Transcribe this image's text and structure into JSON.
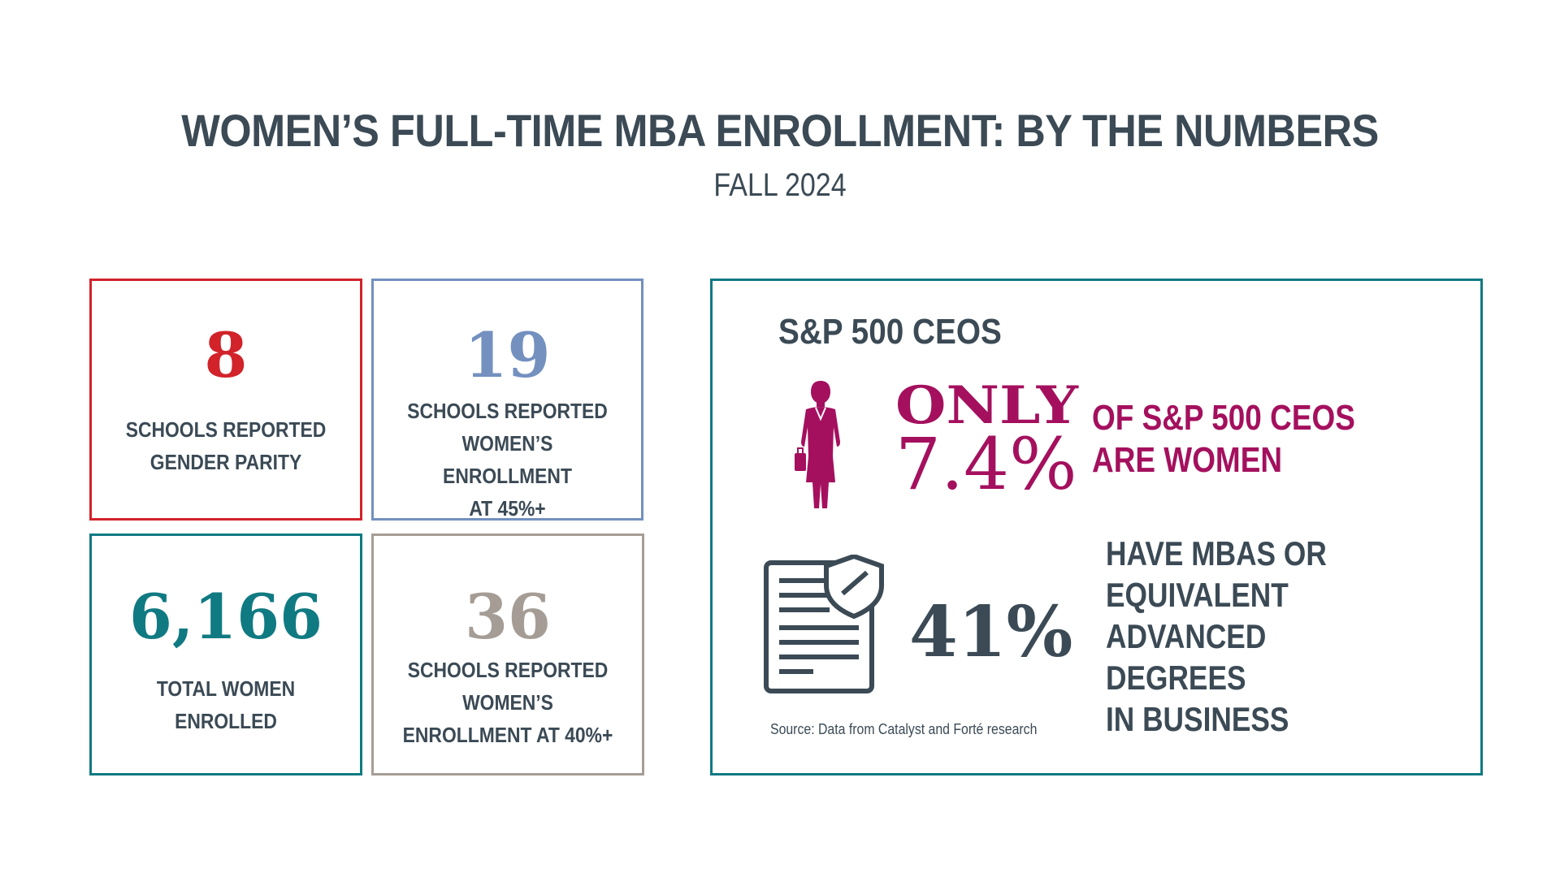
{
  "header": {
    "title": "WOMEN’S FULL-TIME MBA ENROLLMENT: BY THE NUMBERS",
    "subtitle": "FALL 2024"
  },
  "stats": [
    {
      "value": "8",
      "label_lines": [
        "SCHOOLS REPORTED",
        "GENDER PARITY"
      ],
      "color": "#d2232a"
    },
    {
      "value": "19",
      "label_lines": [
        "SCHOOLS REPORTED",
        "WOMEN’S ENROLLMENT",
        "AT 45%+"
      ],
      "color": "#7390bf"
    },
    {
      "value": "6,166",
      "label_lines": [
        "TOTAL WOMEN",
        "ENROLLED"
      ],
      "color": "#107a82"
    },
    {
      "value": "36",
      "label_lines": [
        "SCHOOLS REPORTED",
        "WOMEN’S",
        "ENROLLMENT AT 40%+"
      ],
      "color": "#a59d95"
    }
  ],
  "ceo_panel": {
    "title": "S&P 500 CEOS",
    "only_label": "ONLY",
    "women_ceo_pct": "7.4%",
    "women_ceo_desc_lines": [
      "OF S&P 500 CEOS",
      "ARE WOMEN"
    ],
    "mba_pct": "41%",
    "mba_desc_lines": [
      "HAVE MBAS OR",
      "EQUIVALENT ADVANCED",
      "DEGREES",
      "IN BUSINESS"
    ],
    "source": "Source: Data from Catalyst and Forté research",
    "woman_icon": "businesswoman-icon",
    "document_icon": "document-shield-icon",
    "accent_color": "#a4105e",
    "border_color": "#107a82"
  }
}
